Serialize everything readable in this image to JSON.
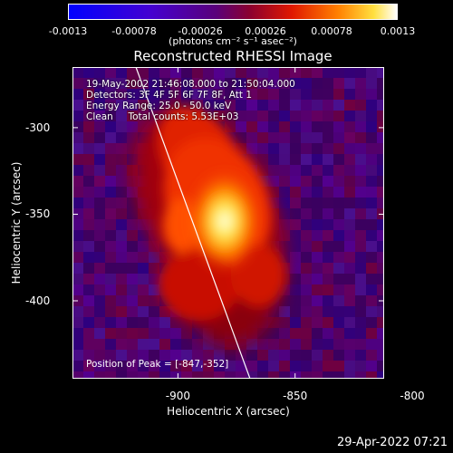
{
  "colorbar": {
    "ticks": [
      "-0.0013",
      "-0.00078",
      "-0.00026",
      "0.00026",
      "0.00078",
      "0.0013"
    ],
    "unit_label": "(photons cm⁻² s⁻¹ asec⁻²)"
  },
  "chart_data": {
    "type": "heatmap",
    "title": "Reconstructed RHESSI Image",
    "xlabel": "Heliocentric X (arcsec)",
    "ylabel": "Heliocentric Y (arcsec)",
    "xlim": [
      -945,
      -812
    ],
    "ylim": [
      -445,
      -265
    ],
    "xticks": [
      "-900",
      "-850",
      "-800"
    ],
    "yticks": [
      "-300",
      "-350",
      "-400"
    ],
    "zlim": [
      -0.0013,
      0.0013
    ],
    "info_lines": [
      "19-May-2002 21:46:08.000 to 21:50:04.000",
      "Detectors: 3F 4F 5F 6F 7F 8F, Att 1",
      "Energy Range: 25.0 - 50.0 keV",
      "Clean     Total counts: 5.53E+03"
    ],
    "peak_label": "Position of Peak = [-847,-352]",
    "peak": [
      -847,
      -352
    ],
    "limb": true
  },
  "timestamp": "29-Apr-2022 07:21"
}
